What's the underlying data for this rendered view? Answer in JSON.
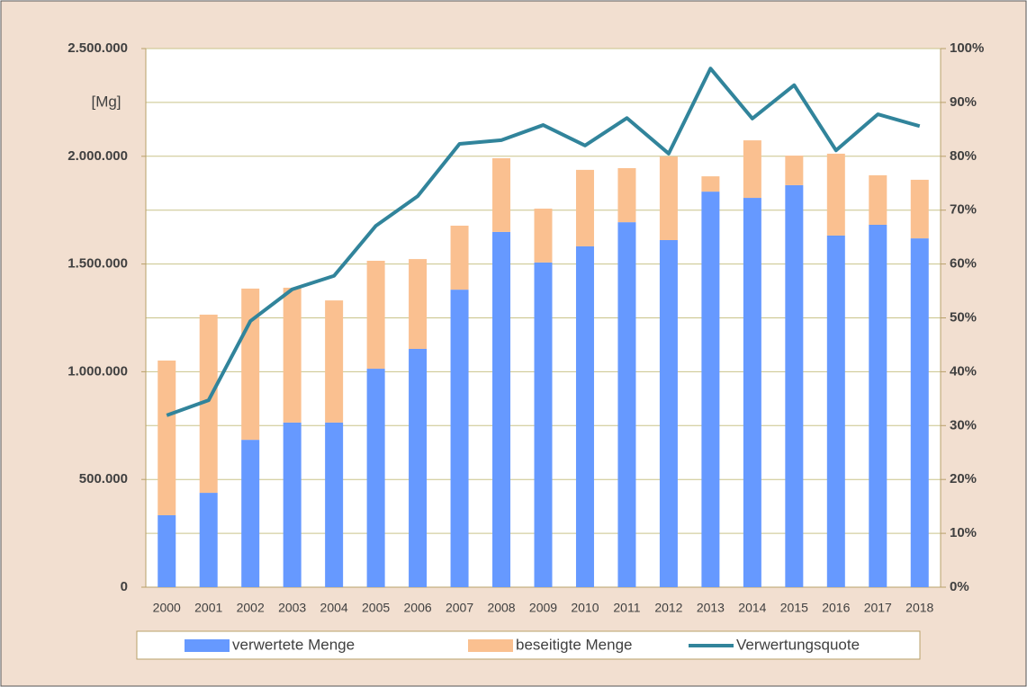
{
  "chart_data": {
    "type": "bar",
    "stacked": true,
    "y_unit_label": "[Mg]",
    "categories": [
      "2000",
      "2001",
      "2002",
      "2003",
      "2004",
      "2005",
      "2006",
      "2007",
      "2008",
      "2009",
      "2010",
      "2011",
      "2012",
      "2013",
      "2014",
      "2015",
      "2016",
      "2017",
      "2018"
    ],
    "series": [
      {
        "name": "verwertete Menge",
        "type": "bar",
        "color": "#6699ff",
        "values": [
          334000,
          438000,
          684000,
          764000,
          764000,
          1014000,
          1106000,
          1381000,
          1649000,
          1507000,
          1582000,
          1694000,
          1611000,
          1836000,
          1807000,
          1866000,
          1632000,
          1682000,
          1619000
        ]
      },
      {
        "name": "beseitigte Menge",
        "type": "bar",
        "color": "#fac090",
        "values": [
          718000,
          827000,
          702000,
          626000,
          567000,
          501000,
          417000,
          297000,
          342000,
          250000,
          355000,
          251000,
          388000,
          71000,
          267000,
          137000,
          380000,
          230000,
          272000
        ]
      },
      {
        "name": "Verwertungsquote",
        "type": "line",
        "axis": "y2",
        "color": "#31849b",
        "values": [
          31.9,
          34.7,
          49.4,
          55.3,
          57.8,
          67.1,
          72.6,
          82.3,
          83.0,
          85.8,
          82.0,
          87.1,
          80.5,
          96.3,
          87.0,
          93.2,
          81.1,
          87.8,
          85.6
        ]
      }
    ],
    "ylim": [
      0,
      2500000
    ],
    "yticks": [
      0,
      {
        "value": 500000,
        "label": "500.000"
      },
      {
        "value": 1000000,
        "label": "1.000.000"
      },
      {
        "value": 1500000,
        "label": "1.500.000"
      },
      {
        "value": 2000000,
        "label": "2.000.000"
      },
      {
        "value": 2500000,
        "label": "2.500.000"
      }
    ],
    "y2lim": [
      0,
      100
    ],
    "y2ticks": [
      {
        "value": 0,
        "label": "0%"
      },
      {
        "value": 10,
        "label": "10%"
      },
      {
        "value": 20,
        "label": "20%"
      },
      {
        "value": 30,
        "label": "30%"
      },
      {
        "value": 40,
        "label": "40%"
      },
      {
        "value": 50,
        "label": "50%"
      },
      {
        "value": 60,
        "label": "60%"
      },
      {
        "value": 70,
        "label": "70%"
      },
      {
        "value": 80,
        "label": "80%"
      },
      {
        "value": 90,
        "label": "90%"
      },
      {
        "value": 100,
        "label": "100%"
      }
    ],
    "grid": true,
    "legend": "bottom"
  }
}
